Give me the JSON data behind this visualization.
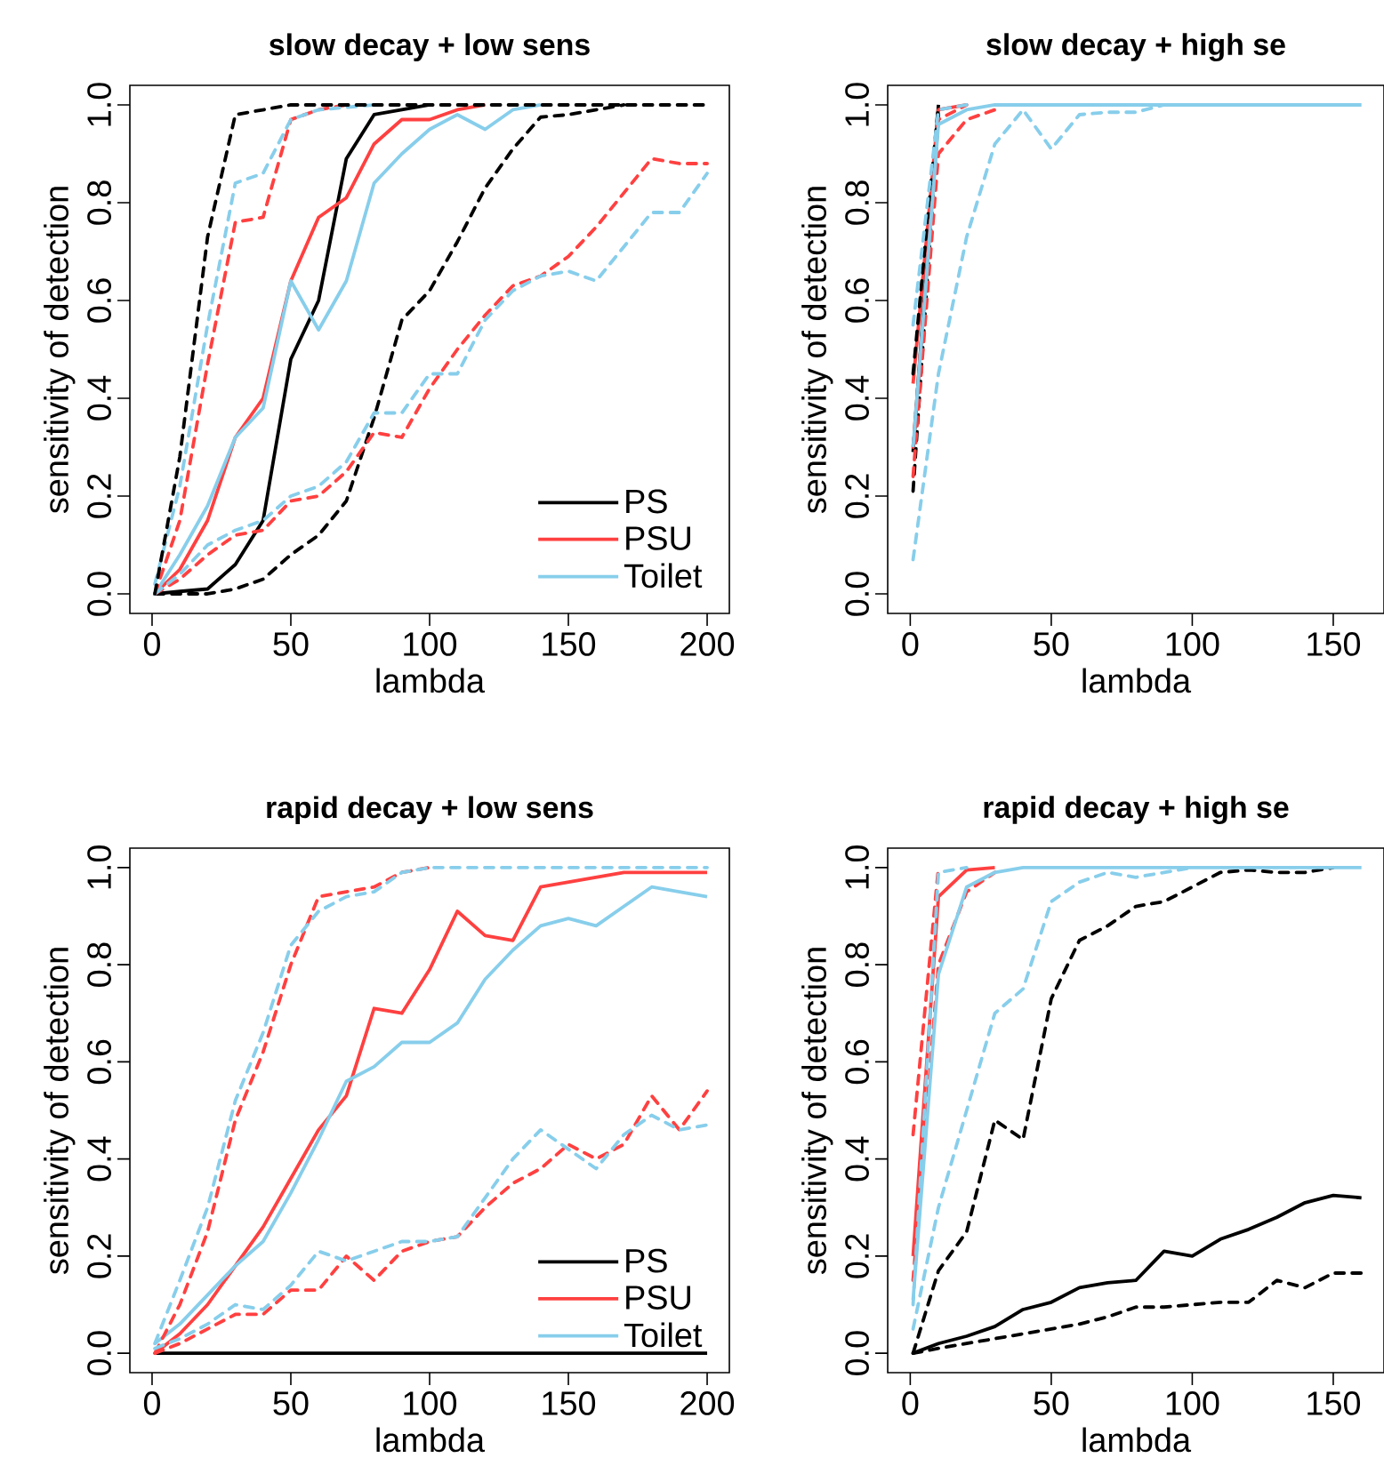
{
  "chart_data": [
    {
      "type": "line",
      "title": "slow decay + low sens",
      "xlabel": "lambda",
      "ylabel": "sensitivity of detection",
      "legend": "bottom right",
      "x": [
        1,
        10,
        20,
        30,
        40,
        50,
        60,
        70,
        80,
        90,
        100,
        110,
        120,
        130,
        140,
        150,
        160,
        170,
        180,
        190,
        200
      ],
      "xlim": [
        -8,
        208
      ],
      "ylim": [
        -0.04,
        1.04
      ],
      "xticks": [
        0,
        50,
        100,
        150,
        200
      ],
      "yticks": [
        {
          "value": 0,
          "label": "0.0"
        },
        {
          "value": 0.2,
          "label": "0.2"
        },
        {
          "value": 0.4,
          "label": "0.4"
        },
        {
          "value": 0.6,
          "label": "0.6"
        },
        {
          "value": 0.8,
          "label": "0.8"
        },
        {
          "value": 1,
          "label": "1.0"
        }
      ],
      "series": [
        {
          "name": "PS",
          "color": "#000000",
          "line_style": "solid",
          "values": [
            0,
            0.005,
            0.01,
            0.06,
            0.15,
            0.48,
            0.6,
            0.89,
            0.98,
            0.99,
            1,
            null,
            null,
            null,
            null,
            null,
            null,
            null,
            null,
            null,
            null
          ]
        },
        {
          "name": "PSU",
          "color": "#ff4040",
          "line_style": "solid",
          "values": [
            0,
            0.05,
            0.15,
            0.32,
            0.4,
            0.64,
            0.77,
            0.81,
            0.92,
            0.97,
            0.97,
            0.99,
            1,
            null,
            null,
            null,
            null,
            null,
            null,
            null,
            null
          ]
        },
        {
          "name": "Toilet",
          "color": "#87ceeb",
          "line_style": "solid",
          "values": [
            0,
            0.08,
            0.18,
            0.32,
            0.38,
            0.64,
            0.54,
            0.64,
            0.84,
            0.9,
            0.95,
            0.98,
            0.95,
            0.99,
            1,
            null,
            null,
            null,
            null,
            null,
            null
          ]
        },
        {
          "color": "#ff4040",
          "line_style": "dashed",
          "values": [
            0,
            0.15,
            0.47,
            0.76,
            0.77,
            0.97,
            0.99,
            1,
            null,
            null,
            null,
            null,
            null,
            null,
            null,
            null,
            null,
            null,
            null,
            null,
            null
          ]
        },
        {
          "color": "#87ceeb",
          "line_style": "dashed",
          "values": [
            0.02,
            0.22,
            0.55,
            0.84,
            0.86,
            0.97,
            0.99,
            0.995,
            1,
            null,
            null,
            null,
            null,
            null,
            null,
            null,
            null,
            null,
            null,
            null,
            null
          ]
        },
        {
          "color": "#000000",
          "line_style": "dashed",
          "values": [
            0,
            0,
            0,
            0.01,
            0.03,
            0.08,
            0.12,
            0.19,
            0.36,
            0.56,
            0.62,
            0.72,
            0.83,
            0.91,
            0.975,
            0.98,
            0.99,
            1,
            null,
            null,
            null
          ]
        },
        {
          "color": "#ff4040",
          "line_style": "dashed",
          "values": [
            0,
            0.03,
            0.08,
            0.12,
            0.13,
            0.19,
            0.2,
            0.25,
            0.33,
            0.32,
            0.42,
            0.5,
            0.57,
            0.63,
            0.65,
            0.69,
            0.75,
            0.82,
            0.89,
            0.88,
            0.88
          ]
        },
        {
          "color": "#87ceeb",
          "line_style": "dashed",
          "values": [
            0,
            0.04,
            0.1,
            0.13,
            0.15,
            0.2,
            0.22,
            0.27,
            0.37,
            0.37,
            0.45,
            0.45,
            0.56,
            0.62,
            0.65,
            0.66,
            0.64,
            0.71,
            0.78,
            0.78,
            0.86
          ]
        },
        {
          "color": "#000000",
          "line_style": "dashed",
          "values": [
            0,
            0.28,
            0.73,
            0.98,
            0.99,
            1,
            1,
            1,
            1,
            1,
            1,
            1,
            1,
            1,
            1,
            1,
            1,
            1,
            1,
            1,
            1
          ]
        }
      ]
    },
    {
      "type": "line",
      "title": "slow decay + high se",
      "xlabel": "lambda",
      "ylabel": "sensitivity of detection",
      "x": [
        1,
        10,
        20,
        30,
        40,
        50,
        60,
        70,
        80,
        90,
        100,
        110,
        120,
        130,
        140,
        150,
        160
      ],
      "xlim": [
        -8,
        168
      ],
      "ylim": [
        -0.04,
        1.04
      ],
      "xticks": [
        0,
        50,
        100,
        150
      ],
      "yticks": [
        {
          "value": 0,
          "label": "0.0"
        },
        {
          "value": 0.2,
          "label": "0.2"
        },
        {
          "value": 0.4,
          "label": "0.4"
        },
        {
          "value": 0.6,
          "label": "0.6"
        },
        {
          "value": 0.8,
          "label": "0.8"
        },
        {
          "value": 1,
          "label": "1.0"
        }
      ],
      "series": [
        {
          "color": "#000000",
          "line_style": "solid",
          "values": [
            0.29,
            1,
            null,
            null,
            null,
            null,
            null,
            null,
            null,
            null,
            null,
            null,
            null,
            null,
            null,
            null,
            null
          ]
        },
        {
          "color": "#ff4040",
          "line_style": "solid",
          "values": [
            0.43,
            0.99,
            1,
            null,
            null,
            null,
            null,
            null,
            null,
            null,
            null,
            null,
            null,
            null,
            null,
            null,
            null
          ]
        },
        {
          "color": "#000000",
          "line_style": "dashed",
          "values": [
            0.45,
            1,
            null,
            null,
            null,
            null,
            null,
            null,
            null,
            null,
            null,
            null,
            null,
            null,
            null,
            null,
            null
          ]
        },
        {
          "color": "#000000",
          "line_style": "dashed",
          "values": [
            0.21,
            0.98,
            null,
            null,
            null,
            null,
            null,
            null,
            null,
            null,
            null,
            null,
            null,
            null,
            null,
            null,
            null
          ]
        },
        {
          "color": "#ff4040",
          "line_style": "dashed",
          "values": [
            0.3,
            0.97,
            1,
            null,
            null,
            null,
            null,
            null,
            null,
            null,
            null,
            null,
            null,
            null,
            null,
            null,
            null
          ]
        },
        {
          "color": "#ff4040",
          "line_style": "dashed",
          "values": [
            0.24,
            0.9,
            0.97,
            0.99,
            null,
            null,
            null,
            null,
            null,
            null,
            null,
            null,
            null,
            null,
            null,
            null,
            null
          ]
        },
        {
          "color": "#87ceeb",
          "line_style": "dashed",
          "values": [
            0.55,
            0.99,
            1,
            null,
            null,
            null,
            null,
            null,
            null,
            null,
            null,
            null,
            null,
            null,
            null,
            null,
            null
          ]
        },
        {
          "color": "#87ceeb",
          "line_style": "dashed",
          "values": [
            0.07,
            0.45,
            0.73,
            0.92,
            0.99,
            0.91,
            0.98,
            0.985,
            0.985,
            1,
            null,
            null,
            null,
            null,
            null,
            null,
            null
          ]
        },
        {
          "color": "#87ceeb",
          "line_style": "solid",
          "values": [
            0.3,
            0.96,
            0.99,
            1,
            1,
            1,
            1,
            1,
            1,
            1,
            1,
            1,
            1,
            1,
            1,
            1,
            1
          ]
        }
      ]
    },
    {
      "type": "line",
      "title": "rapid decay + low sens",
      "xlabel": "lambda",
      "ylabel": "sensitivity of detection",
      "legend": "bottom right",
      "x": [
        1,
        10,
        20,
        30,
        40,
        50,
        60,
        70,
        80,
        90,
        100,
        110,
        120,
        130,
        140,
        150,
        160,
        170,
        180,
        190,
        200
      ],
      "xlim": [
        -8,
        208
      ],
      "ylim": [
        -0.04,
        1.04
      ],
      "xticks": [
        0,
        50,
        100,
        150,
        200
      ],
      "yticks": [
        {
          "value": 0,
          "label": "0.0"
        },
        {
          "value": 0.2,
          "label": "0.2"
        },
        {
          "value": 0.4,
          "label": "0.4"
        },
        {
          "value": 0.6,
          "label": "0.6"
        },
        {
          "value": 0.8,
          "label": "0.8"
        },
        {
          "value": 1,
          "label": "1.0"
        }
      ],
      "series": [
        {
          "name": "PS",
          "color": "#000000",
          "line_style": "solid",
          "values": [
            0,
            0,
            0,
            0,
            0,
            0,
            0,
            0,
            0,
            0,
            0,
            0,
            0,
            0,
            0,
            0,
            0,
            0,
            0,
            0,
            0
          ]
        },
        {
          "name": "PSU",
          "color": "#ff4040",
          "line_style": "solid",
          "values": [
            0,
            0.04,
            0.1,
            0.18,
            0.26,
            0.36,
            0.46,
            0.53,
            0.71,
            0.7,
            0.79,
            0.91,
            0.86,
            0.85,
            0.96,
            0.97,
            0.98,
            0.99,
            0.99,
            0.99,
            0.99
          ]
        },
        {
          "name": "Toilet",
          "color": "#87ceeb",
          "line_style": "solid",
          "values": [
            0.02,
            0.06,
            0.12,
            0.18,
            0.23,
            0.33,
            0.44,
            0.56,
            0.59,
            0.64,
            0.64,
            0.68,
            0.77,
            0.83,
            0.88,
            0.895,
            0.88,
            0.92,
            0.96,
            0.95,
            0.94
          ]
        },
        {
          "color": "#ff4040",
          "line_style": "dashed",
          "values": [
            0,
            0.1,
            0.25,
            0.48,
            0.62,
            0.8,
            0.94,
            0.95,
            0.96,
            0.99,
            1,
            null,
            null,
            null,
            null,
            null,
            null,
            null,
            null,
            null,
            null
          ]
        },
        {
          "color": "#ff4040",
          "line_style": "dashed",
          "values": [
            0,
            0.02,
            0.05,
            0.08,
            0.08,
            0.13,
            0.13,
            0.2,
            0.15,
            0.21,
            0.23,
            0.24,
            0.3,
            0.35,
            0.38,
            0.43,
            0.4,
            0.43,
            0.53,
            0.46,
            0.54
          ]
        },
        {
          "color": "#87ceeb",
          "line_style": "dashed",
          "values": [
            0.01,
            0.03,
            0.06,
            0.1,
            0.09,
            0.14,
            0.21,
            0.19,
            0.21,
            0.23,
            0.23,
            0.24,
            0.32,
            0.4,
            0.46,
            0.42,
            0.38,
            0.45,
            0.49,
            0.46,
            0.47
          ]
        },
        {
          "color": "#87ceeb",
          "line_style": "dashed",
          "values": [
            0.02,
            0.15,
            0.3,
            0.52,
            0.66,
            0.84,
            0.91,
            0.94,
            0.95,
            0.99,
            1,
            1,
            1,
            1,
            1,
            1,
            1,
            1,
            1,
            1,
            1
          ]
        }
      ]
    },
    {
      "type": "line",
      "title": "rapid decay + high se",
      "xlabel": "lambda",
      "ylabel": "sensitivity of detection",
      "x": [
        1,
        10,
        20,
        30,
        40,
        50,
        60,
        70,
        80,
        90,
        100,
        110,
        120,
        130,
        140,
        150,
        160
      ],
      "xlim": [
        -8,
        168
      ],
      "ylim": [
        -0.04,
        1.04
      ],
      "xticks": [
        0,
        50,
        100,
        150
      ],
      "yticks": [
        {
          "value": 0,
          "label": "0.0"
        },
        {
          "value": 0.2,
          "label": "0.2"
        },
        {
          "value": 0.4,
          "label": "0.4"
        },
        {
          "value": 0.6,
          "label": "0.6"
        },
        {
          "value": 0.8,
          "label": "0.8"
        },
        {
          "value": 1,
          "label": "1.0"
        }
      ],
      "series": [
        {
          "color": "#000000",
          "line_style": "solid",
          "values": [
            0,
            0.02,
            0.035,
            0.055,
            0.09,
            0.105,
            0.135,
            0.145,
            0.15,
            0.21,
            0.2,
            0.235,
            0.255,
            0.28,
            0.31,
            0.325,
            0.32
          ]
        },
        {
          "color": "#ff4040",
          "line_style": "solid",
          "values": [
            0.2,
            0.94,
            0.995,
            1,
            null,
            null,
            null,
            null,
            null,
            null,
            null,
            null,
            null,
            null,
            null,
            null,
            null
          ]
        },
        {
          "color": "#000000",
          "line_style": "dashed",
          "values": [
            0,
            0.17,
            0.25,
            0.48,
            0.44,
            0.73,
            0.85,
            0.88,
            0.92,
            0.93,
            0.96,
            0.99,
            0.995,
            0.99,
            0.99,
            1,
            null
          ]
        },
        {
          "color": "#000000",
          "line_style": "dashed",
          "values": [
            0,
            0.01,
            0.02,
            0.03,
            0.04,
            0.05,
            0.06,
            0.075,
            0.095,
            0.095,
            0.1,
            0.105,
            0.105,
            0.15,
            0.135,
            0.165,
            0.165
          ]
        },
        {
          "color": "#ff4040",
          "line_style": "dashed",
          "values": [
            0.45,
            1,
            null,
            null,
            null,
            null,
            null,
            null,
            null,
            null,
            null,
            null,
            null,
            null,
            null,
            null,
            null
          ]
        },
        {
          "color": "#ff4040",
          "line_style": "dashed",
          "values": [
            0.15,
            0.8,
            0.95,
            0.99,
            null,
            null,
            null,
            null,
            null,
            null,
            null,
            null,
            null,
            null,
            null,
            null,
            null
          ]
        },
        {
          "color": "#87ceeb",
          "line_style": "dashed",
          "values": [
            0.05,
            0.3,
            0.5,
            0.7,
            0.75,
            0.93,
            0.97,
            0.99,
            0.98,
            0.99,
            1,
            null,
            null,
            null,
            null,
            null,
            null
          ]
        },
        {
          "color": "#87ceeb",
          "line_style": "dashed",
          "values": [
            0.1,
            0.99,
            1,
            null,
            null,
            null,
            null,
            null,
            null,
            null,
            null,
            null,
            null,
            null,
            null,
            null,
            null
          ]
        },
        {
          "color": "#87ceeb",
          "line_style": "solid",
          "values": [
            0.11,
            0.78,
            0.96,
            0.99,
            1,
            1,
            1,
            1,
            1,
            1,
            1,
            1,
            1,
            1,
            1,
            1,
            1
          ]
        }
      ]
    }
  ]
}
